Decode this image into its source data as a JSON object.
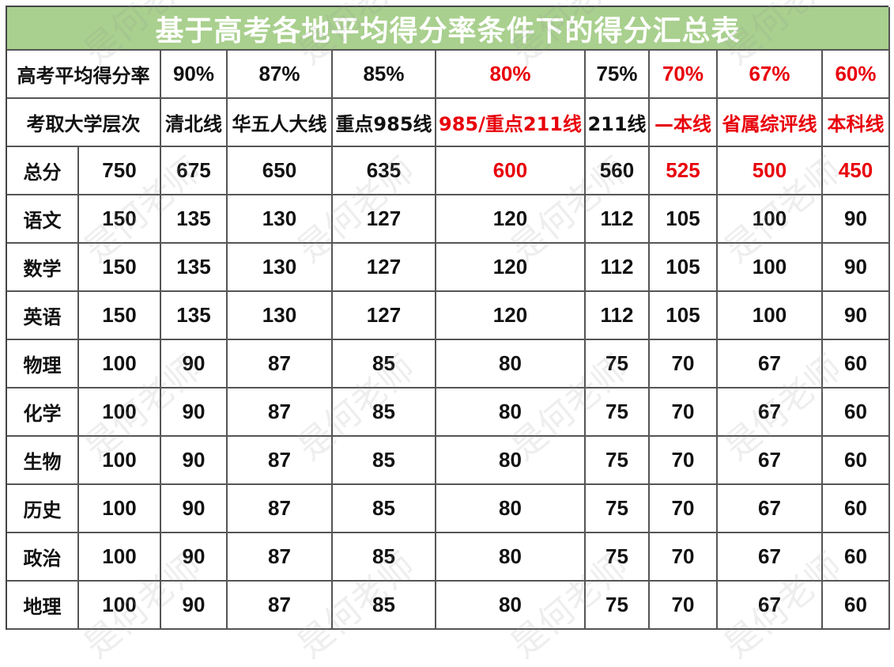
{
  "title": "基于高考各地平均得分率条件下的得分汇总表",
  "watermark": "是何老师",
  "colors": {
    "title_bg": "#a9d08e",
    "highlight": "#e8000b",
    "text": "#111111"
  },
  "rate_row": {
    "label": "高考平均得分率",
    "values": [
      "90%",
      "87%",
      "85%",
      "80%",
      "75%",
      "70%",
      "67%",
      "60%"
    ]
  },
  "level_row": {
    "label": "考取大学层次",
    "values": [
      "清北线",
      "华五人大线",
      "重点985线",
      "985/重点211线",
      "211线",
      "—本线",
      "省属综评线",
      "本科线"
    ]
  },
  "highlighted_columns": [
    3,
    5,
    6,
    7
  ],
  "rows": [
    {
      "subject": "总分",
      "full": "750",
      "values": [
        "675",
        "650",
        "635",
        "600",
        "560",
        "525",
        "500",
        "450"
      ],
      "highlight": true
    },
    {
      "subject": "语文",
      "full": "150",
      "values": [
        "135",
        "130",
        "127",
        "120",
        "112",
        "105",
        "100",
        "90"
      ]
    },
    {
      "subject": "数学",
      "full": "150",
      "values": [
        "135",
        "130",
        "127",
        "120",
        "112",
        "105",
        "100",
        "90"
      ]
    },
    {
      "subject": "英语",
      "full": "150",
      "values": [
        "135",
        "130",
        "127",
        "120",
        "112",
        "105",
        "100",
        "90"
      ]
    },
    {
      "subject": "物理",
      "full": "100",
      "values": [
        "90",
        "87",
        "85",
        "80",
        "75",
        "70",
        "67",
        "60"
      ]
    },
    {
      "subject": "化学",
      "full": "100",
      "values": [
        "90",
        "87",
        "85",
        "80",
        "75",
        "70",
        "67",
        "60"
      ]
    },
    {
      "subject": "生物",
      "full": "100",
      "values": [
        "90",
        "87",
        "85",
        "80",
        "75",
        "70",
        "67",
        "60"
      ]
    },
    {
      "subject": "历史",
      "full": "100",
      "values": [
        "90",
        "87",
        "85",
        "80",
        "75",
        "70",
        "67",
        "60"
      ]
    },
    {
      "subject": "政治",
      "full": "100",
      "values": [
        "90",
        "87",
        "85",
        "80",
        "75",
        "70",
        "67",
        "60"
      ]
    },
    {
      "subject": "地理",
      "full": "100",
      "values": [
        "90",
        "87",
        "85",
        "80",
        "75",
        "70",
        "67",
        "60"
      ]
    }
  ]
}
